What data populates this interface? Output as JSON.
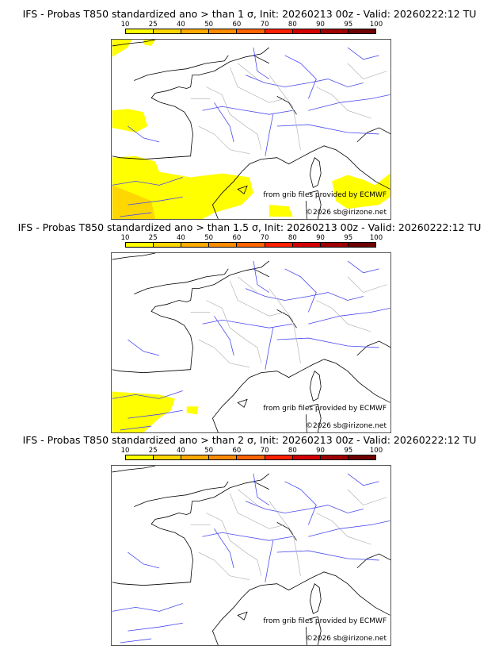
{
  "colorbar": {
    "ticks": [
      "10",
      "25",
      "40",
      "50",
      "60",
      "70",
      "80",
      "90",
      "95",
      "100"
    ],
    "colors": [
      "#ffff00",
      "#ffd700",
      "#ffaa00",
      "#ff8c00",
      "#ff6400",
      "#ff2000",
      "#d40000",
      "#a00000",
      "#6e0000"
    ]
  },
  "panels": [
    {
      "title": "IFS - Probas T850  standardized ano > than 1 σ, Init: 20260213 00z - Valid: 20260222:12 TU",
      "credit1": "from grib files provided by ECMWF",
      "credit2": "©2026 sb@irizone.net"
    },
    {
      "title": "IFS - Probas T850  standardized ano > than 1.5 σ, Init: 20260213 00z - Valid: 20260222:12 TU",
      "credit1": "from grib files provided by ECMWF",
      "credit2": "©2026 sb@irizone.net"
    },
    {
      "title": "IFS - Probas T850  standardized ano > than 2 σ, Init: 20260213 00z - Valid: 20260222:12 TU",
      "credit1": "from grib files provided by ECMWF",
      "credit2": "©2026 sb@irizone.net"
    }
  ]
}
